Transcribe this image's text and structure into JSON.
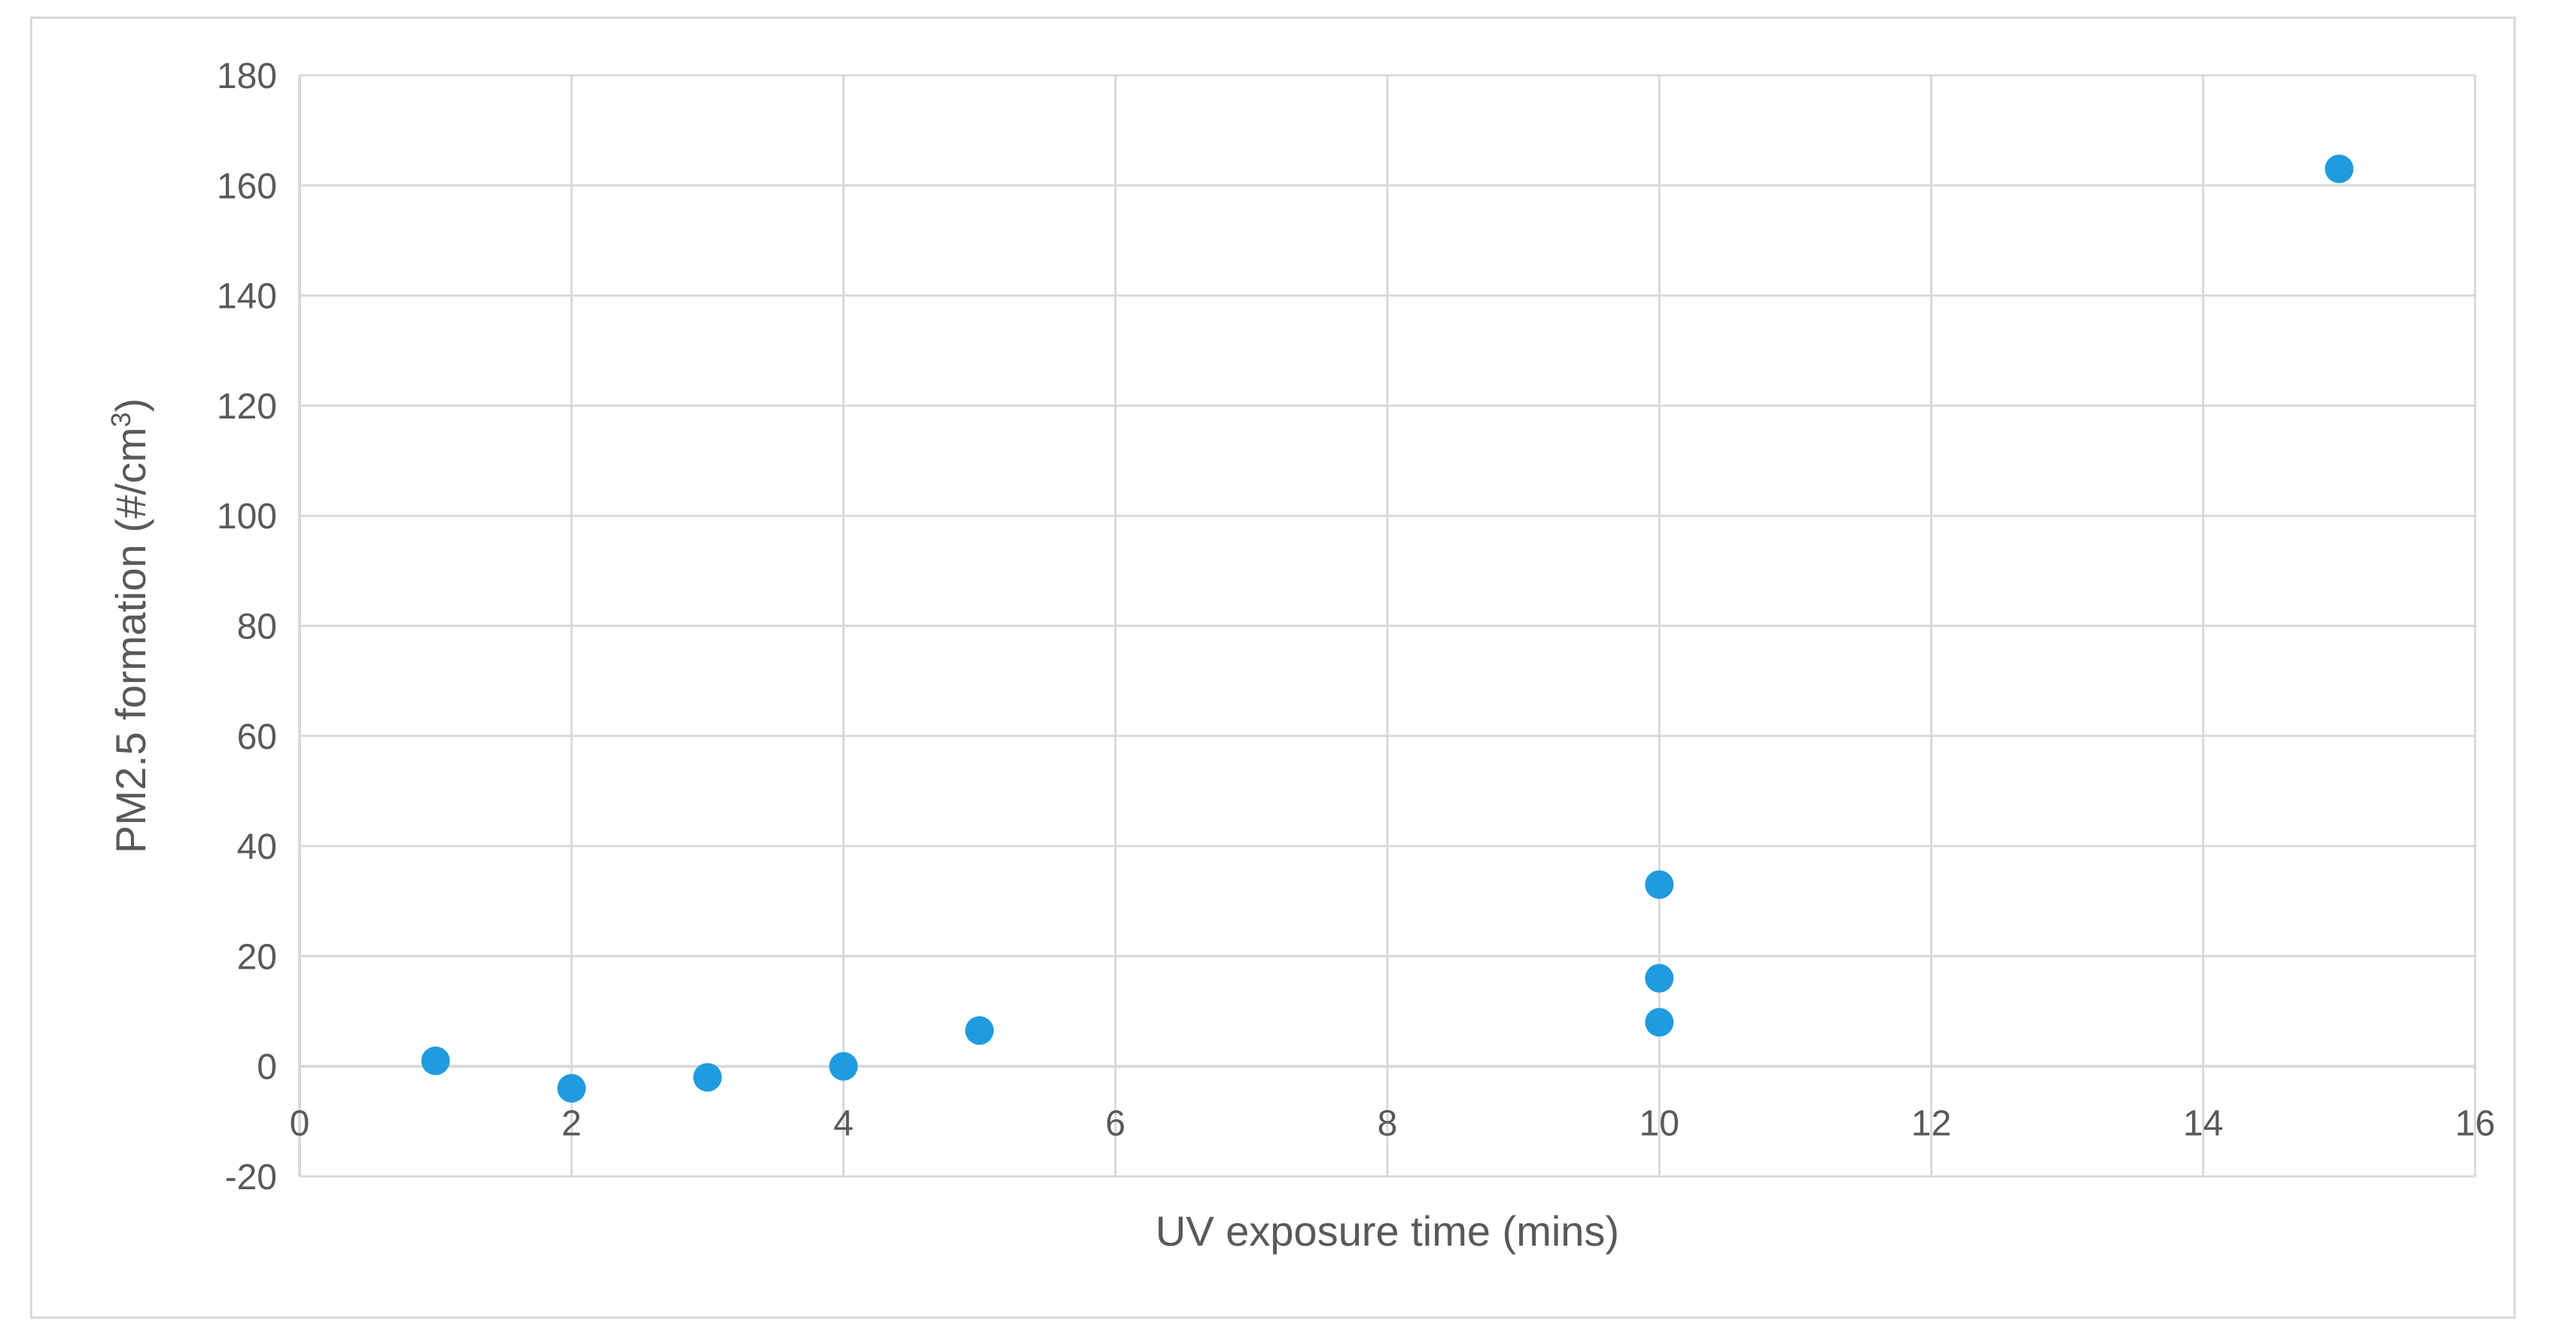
{
  "chart_data": {
    "type": "scatter",
    "title": "",
    "xlabel": "UV exposure time (mins)",
    "ylabel_prefix": "PM2.5 formation (#/cm",
    "ylabel_superscript": "3",
    "ylabel_suffix": ")",
    "xlim": [
      0,
      16
    ],
    "ylim": [
      -20,
      180
    ],
    "xticks": [
      0,
      2,
      4,
      6,
      8,
      10,
      12,
      14,
      16
    ],
    "yticks": [
      -20,
      0,
      20,
      40,
      60,
      80,
      100,
      120,
      140,
      160,
      180
    ],
    "grid": true,
    "legend": "none",
    "series": [
      {
        "color": "#1f9be0",
        "points": [
          {
            "x": 1,
            "y": 1
          },
          {
            "x": 2,
            "y": -4
          },
          {
            "x": 3,
            "y": -2
          },
          {
            "x": 4,
            "y": 0
          },
          {
            "x": 5,
            "y": 6.5
          },
          {
            "x": 10,
            "y": 8
          },
          {
            "x": 10,
            "y": 16
          },
          {
            "x": 10,
            "y": 33
          },
          {
            "x": 15,
            "y": 163
          }
        ]
      }
    ],
    "colors": {
      "grid": "#d9d9d9",
      "axis_text": "#595959",
      "marker": "#1f9be0"
    }
  }
}
